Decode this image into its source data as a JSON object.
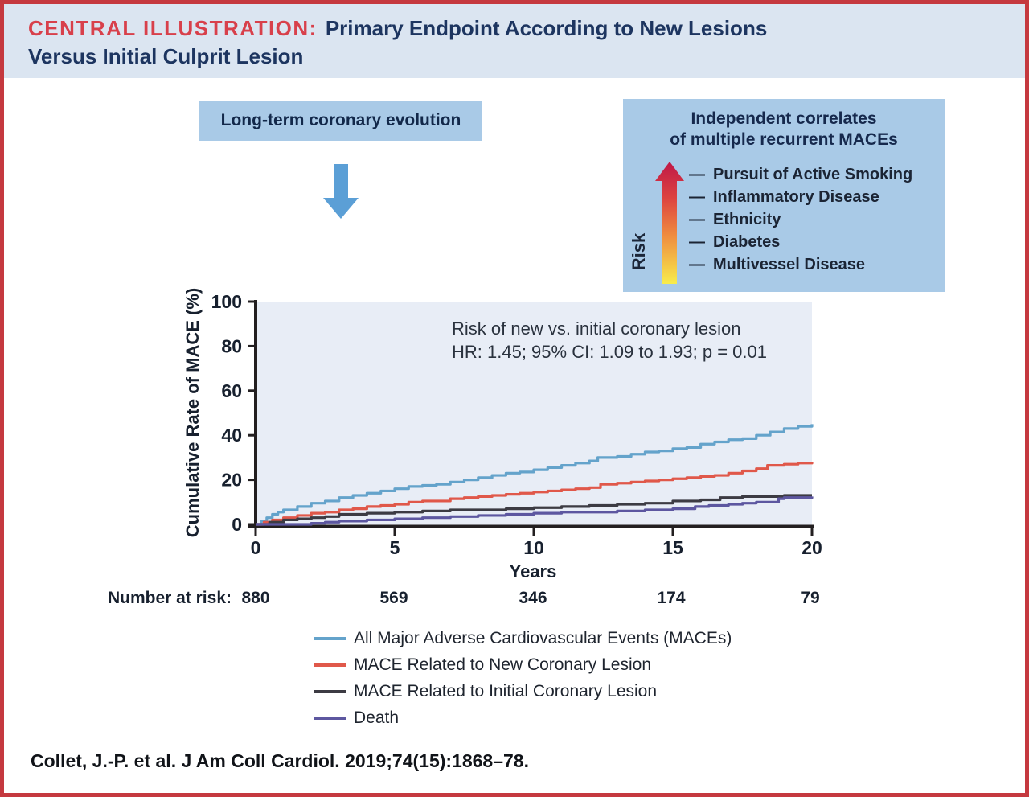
{
  "header": {
    "label": "CENTRAL ILLUSTRATION:",
    "title_line1": "Primary Endpoint According to New Lesions",
    "title_line2": "Versus Initial Culprit Lesion"
  },
  "flow": {
    "left_box_label": "Long-term coronary evolution"
  },
  "correlates_box": {
    "title_line1": "Independent correlates",
    "title_line2": "of multiple recurrent MACEs",
    "axis_label": "Risk",
    "bullet": "—",
    "items": [
      "Pursuit of Active Smoking",
      "Inflammatory Disease",
      "Ethnicity",
      "Diabetes",
      "Multivessel Disease"
    ]
  },
  "chart_data": {
    "type": "line",
    "subtype": "kaplan-meier-step",
    "xlabel": "Years",
    "ylabel": "Cumulative Rate of MACE (%)",
    "xlim": [
      0,
      20
    ],
    "ylim": [
      0,
      100
    ],
    "x_ticks": [
      0,
      5,
      10,
      15,
      20
    ],
    "y_ticks": [
      0,
      20,
      40,
      60,
      80,
      100
    ],
    "grid": false,
    "legend_position": "bottom",
    "plot_bg": "#e8edf6",
    "axis_color": "#231f20",
    "annotation": {
      "line1": "Risk of new vs. initial coronary lesion",
      "line2": "HR: 1.45; 95% CI: 1.09 to 1.93; p = 0.01"
    },
    "series": [
      {
        "name": "All Major Adverse Cardiovascular Events (MACEs)",
        "color": "#64a3cb",
        "points": [
          [
            0,
            0
          ],
          [
            0.2,
            1.5
          ],
          [
            0.4,
            3
          ],
          [
            0.6,
            4.5
          ],
          [
            0.8,
            5.5
          ],
          [
            1,
            6.5
          ],
          [
            1.5,
            8
          ],
          [
            2,
            9.5
          ],
          [
            2.5,
            10.5
          ],
          [
            3,
            12
          ],
          [
            3.5,
            13
          ],
          [
            4,
            14
          ],
          [
            4.5,
            15
          ],
          [
            5,
            16
          ],
          [
            5.5,
            17
          ],
          [
            6,
            17.5
          ],
          [
            6.5,
            18
          ],
          [
            7,
            19
          ],
          [
            7.5,
            20
          ],
          [
            8,
            21
          ],
          [
            8.5,
            22
          ],
          [
            9,
            23
          ],
          [
            9.5,
            23.5
          ],
          [
            10,
            24.5
          ],
          [
            10.5,
            25.5
          ],
          [
            11,
            26.5
          ],
          [
            11.5,
            27.5
          ],
          [
            12,
            28.5
          ],
          [
            12.3,
            30
          ],
          [
            13,
            30.5
          ],
          [
            13.5,
            31.5
          ],
          [
            14,
            32.5
          ],
          [
            14.5,
            33
          ],
          [
            15,
            34
          ],
          [
            15.5,
            34.5
          ],
          [
            16,
            36
          ],
          [
            16.5,
            37
          ],
          [
            17,
            38
          ],
          [
            17.5,
            38.5
          ],
          [
            18,
            40
          ],
          [
            18.5,
            41.5
          ],
          [
            19,
            43
          ],
          [
            19.5,
            44
          ],
          [
            20,
            45
          ]
        ]
      },
      {
        "name": "MACE Related to New Coronary Lesion",
        "color": "#e0584a",
        "points": [
          [
            0,
            0
          ],
          [
            0.3,
            1
          ],
          [
            0.6,
            2
          ],
          [
            1,
            3
          ],
          [
            1.5,
            4
          ],
          [
            2,
            5
          ],
          [
            2.5,
            5.5
          ],
          [
            3,
            6.5
          ],
          [
            3.5,
            7
          ],
          [
            4,
            8
          ],
          [
            4.5,
            8.5
          ],
          [
            5,
            9
          ],
          [
            5.5,
            10
          ],
          [
            6,
            10.5
          ],
          [
            6.5,
            10.5
          ],
          [
            7,
            11.5
          ],
          [
            7.5,
            12
          ],
          [
            8,
            12.5
          ],
          [
            8.5,
            13
          ],
          [
            9,
            13.5
          ],
          [
            9.5,
            14
          ],
          [
            10,
            14.5
          ],
          [
            10.5,
            15
          ],
          [
            11,
            15.5
          ],
          [
            11.5,
            16
          ],
          [
            12,
            16.5
          ],
          [
            12.4,
            18
          ],
          [
            13,
            18.5
          ],
          [
            13.5,
            19
          ],
          [
            14,
            19.5
          ],
          [
            14.5,
            20
          ],
          [
            15,
            20.5
          ],
          [
            15.5,
            21
          ],
          [
            16,
            21.5
          ],
          [
            16.5,
            22
          ],
          [
            17,
            23
          ],
          [
            17.5,
            24
          ],
          [
            18,
            25
          ],
          [
            18.4,
            26.5
          ],
          [
            19,
            27
          ],
          [
            19.5,
            27.5
          ],
          [
            20,
            28
          ]
        ]
      },
      {
        "name": "MACE Related to Initial Coronary Lesion",
        "color": "#3c3b43",
        "points": [
          [
            0,
            0
          ],
          [
            0.5,
            1
          ],
          [
            1,
            2
          ],
          [
            1.5,
            2.5
          ],
          [
            2,
            3
          ],
          [
            2.5,
            3.5
          ],
          [
            3,
            4.5
          ],
          [
            4,
            5
          ],
          [
            5,
            5.5
          ],
          [
            6,
            6
          ],
          [
            7,
            6.5
          ],
          [
            8,
            6.5
          ],
          [
            9,
            7
          ],
          [
            10,
            7.5
          ],
          [
            11,
            8
          ],
          [
            12,
            8.5
          ],
          [
            13,
            9
          ],
          [
            14,
            9.5
          ],
          [
            15,
            10.5
          ],
          [
            15.5,
            10.5
          ],
          [
            16,
            11
          ],
          [
            16.7,
            12
          ],
          [
            17.5,
            12.5
          ],
          [
            18,
            12.5
          ],
          [
            19,
            13
          ],
          [
            20,
            13
          ]
        ]
      },
      {
        "name": "Death",
        "color": "#5d57a0",
        "points": [
          [
            0,
            0
          ],
          [
            2,
            0.5
          ],
          [
            2.5,
            1
          ],
          [
            3,
            1.5
          ],
          [
            4,
            2
          ],
          [
            5,
            2.5
          ],
          [
            6,
            3
          ],
          [
            7,
            3.5
          ],
          [
            8,
            4
          ],
          [
            9,
            4.5
          ],
          [
            10,
            5
          ],
          [
            11,
            5.5
          ],
          [
            12,
            5.5
          ],
          [
            13,
            6
          ],
          [
            14,
            6.5
          ],
          [
            15,
            7
          ],
          [
            15.8,
            8
          ],
          [
            16.3,
            8.5
          ],
          [
            17,
            9
          ],
          [
            17.5,
            9.5
          ],
          [
            18,
            10
          ],
          [
            18.8,
            11.5
          ],
          [
            19,
            12
          ],
          [
            19.5,
            12
          ],
          [
            20,
            12.5
          ]
        ]
      }
    ],
    "number_at_risk": {
      "label": "Number at risk:",
      "values": [
        "880",
        "569",
        "346",
        "174",
        "79"
      ]
    }
  },
  "citation": "Collet, J.-P. et al. J Am Coll Cardiol. 2019;74(15):1868–78.",
  "colors": {
    "border_red": "#c5393f",
    "header_bg": "#dbe5f1",
    "header_label_red": "#d8404b",
    "header_title_navy": "#1d3560",
    "box_blue": "#a9cae7",
    "flow_arrow_blue": "#5b9fd6",
    "risk_gradient_bottom": "#f8ec4b",
    "risk_gradient_mid": "#ef8b3f",
    "risk_gradient_top": "#bf1847"
  }
}
